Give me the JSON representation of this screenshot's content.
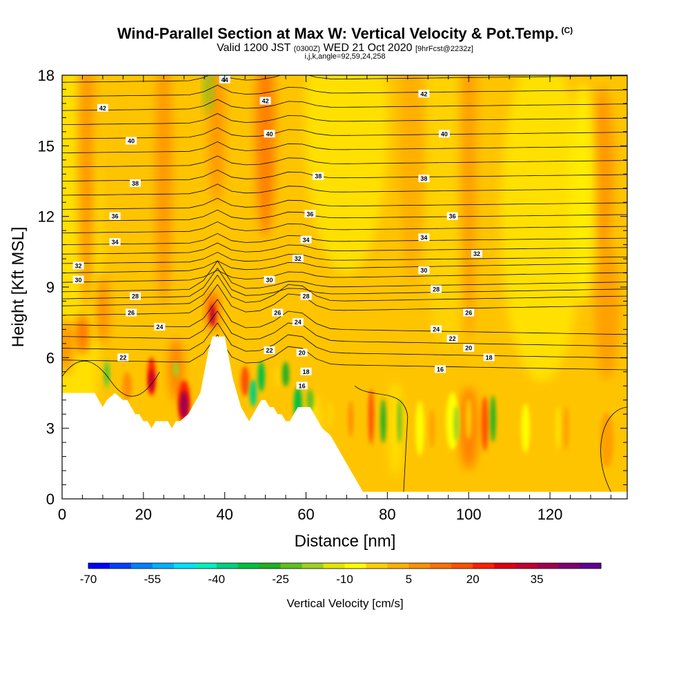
{
  "title": {
    "main": "Wind-Parallel Section at Max W: Vertical Velocity & Pot.Temp.",
    "copyright": "(C)",
    "valid_prefix": "Valid 1200 JST",
    "valid_z": "(0300Z)",
    "valid_date": "WED 21 Oct 2020",
    "fcst": "[9hrFcst@2232z]",
    "ijk": "i,j,k,angle=92,59,24,258"
  },
  "chart_data": {
    "type": "heatmap",
    "xlabel": "Distance [nm]",
    "ylabel": "Height [Kft MSL]",
    "xlim": [
      0,
      139
    ],
    "ylim": [
      0,
      18
    ],
    "x_ticks": [
      0,
      20,
      40,
      60,
      80,
      100,
      120
    ],
    "y_ticks": [
      0,
      3,
      6,
      9,
      12,
      15,
      18
    ],
    "colorbar": {
      "title": "Vertical Velocity [cm/s]",
      "tick_labels": [
        "-70",
        "-55",
        "-40",
        "-25",
        "-10",
        "5",
        "20",
        "35"
      ],
      "colors": [
        "#0000ff",
        "#0040ff",
        "#0080ff",
        "#00b0ff",
        "#00e0ff",
        "#00f0c0",
        "#00d080",
        "#00c040",
        "#20b020",
        "#60c020",
        "#a0d020",
        "#e0e800",
        "#ffff00",
        "#ffd000",
        "#ffb000",
        "#ff9000",
        "#ff7000",
        "#ff5000",
        "#ff2000",
        "#e00010",
        "#c00030",
        "#a00050",
        "#800070",
        "#600090"
      ]
    },
    "terrain_kft": [
      [
        0,
        4.5
      ],
      [
        5,
        4.5
      ],
      [
        8,
        4.5
      ],
      [
        9,
        4.2
      ],
      [
        10,
        3.9
      ],
      [
        11,
        4.2
      ],
      [
        13,
        4.5
      ],
      [
        15,
        4.2
      ],
      [
        16,
        4.2
      ],
      [
        17,
        3.9
      ],
      [
        18,
        3.6
      ],
      [
        19,
        3.6
      ],
      [
        20,
        3.3
      ],
      [
        21,
        3.3
      ],
      [
        22,
        3.0
      ],
      [
        23,
        3.3
      ],
      [
        24,
        3.3
      ],
      [
        26,
        3.3
      ],
      [
        27,
        3.0
      ],
      [
        28,
        3.3
      ],
      [
        29,
        3.3
      ],
      [
        31,
        3.6
      ],
      [
        32,
        3.9
      ],
      [
        33,
        4.2
      ],
      [
        34,
        4.5
      ],
      [
        35,
        5.4
      ],
      [
        36,
        6.3
      ],
      [
        37,
        6.9
      ],
      [
        40,
        6.9
      ],
      [
        41,
        6.0
      ],
      [
        42,
        5.1
      ],
      [
        43,
        4.5
      ],
      [
        44,
        3.9
      ],
      [
        45,
        3.6
      ],
      [
        46,
        3.3
      ],
      [
        47,
        3.6
      ],
      [
        48,
        3.9
      ],
      [
        49,
        4.2
      ],
      [
        50,
        4.2
      ],
      [
        51,
        3.9
      ],
      [
        52,
        3.9
      ],
      [
        53,
        3.6
      ],
      [
        54,
        3.6
      ],
      [
        55,
        3.3
      ],
      [
        56,
        3.3
      ],
      [
        57,
        3.6
      ],
      [
        58,
        3.9
      ],
      [
        61,
        3.9
      ],
      [
        62,
        3.6
      ],
      [
        63,
        3.3
      ],
      [
        64,
        3.0
      ],
      [
        66,
        2.7
      ],
      [
        67,
        2.4
      ],
      [
        68,
        2.1
      ],
      [
        69,
        1.8
      ],
      [
        70,
        1.5
      ],
      [
        71,
        1.2
      ],
      [
        72,
        0.9
      ],
      [
        73,
        0.6
      ],
      [
        74,
        0.3
      ],
      [
        139,
        0.3
      ]
    ],
    "theta_contours": [
      {
        "label": "16",
        "x": 93,
        "y": 5.5
      },
      {
        "label": "16",
        "x": 59,
        "y": 4.8
      },
      {
        "label": "18",
        "x": 60,
        "y": 5.4
      },
      {
        "label": "18",
        "x": 105,
        "y": 6.0
      },
      {
        "label": "20",
        "x": 59,
        "y": 6.2
      },
      {
        "label": "20",
        "x": 100,
        "y": 6.4
      },
      {
        "label": "22",
        "x": 15,
        "y": 6.0
      },
      {
        "label": "22",
        "x": 51,
        "y": 6.3
      },
      {
        "label": "22",
        "x": 96,
        "y": 6.8
      },
      {
        "label": "24",
        "x": 24,
        "y": 7.3
      },
      {
        "label": "24",
        "x": 58,
        "y": 7.5
      },
      {
        "label": "24",
        "x": 92,
        "y": 7.2
      },
      {
        "label": "26",
        "x": 17,
        "y": 7.9
      },
      {
        "label": "26",
        "x": 53,
        "y": 7.9
      },
      {
        "label": "26",
        "x": 100,
        "y": 7.9
      },
      {
        "label": "28",
        "x": 18,
        "y": 8.6
      },
      {
        "label": "28",
        "x": 60,
        "y": 8.6
      },
      {
        "label": "28",
        "x": 92,
        "y": 8.9
      },
      {
        "label": "30",
        "x": 4,
        "y": 9.3
      },
      {
        "label": "30",
        "x": 51,
        "y": 9.3
      },
      {
        "label": "30",
        "x": 89,
        "y": 9.7
      },
      {
        "label": "32",
        "x": 4,
        "y": 9.9
      },
      {
        "label": "32",
        "x": 58,
        "y": 10.2
      },
      {
        "label": "32",
        "x": 102,
        "y": 10.4
      },
      {
        "label": "34",
        "x": 13,
        "y": 10.9
      },
      {
        "label": "34",
        "x": 60,
        "y": 11.0
      },
      {
        "label": "34",
        "x": 89,
        "y": 11.1
      },
      {
        "label": "36",
        "x": 13,
        "y": 12.0
      },
      {
        "label": "36",
        "x": 61,
        "y": 12.1
      },
      {
        "label": "36",
        "x": 96,
        "y": 12.0
      },
      {
        "label": "38",
        "x": 18,
        "y": 13.4
      },
      {
        "label": "38",
        "x": 63,
        "y": 13.7
      },
      {
        "label": "38",
        "x": 89,
        "y": 13.6
      },
      {
        "label": "40",
        "x": 17,
        "y": 15.2
      },
      {
        "label": "40",
        "x": 51,
        "y": 15.5
      },
      {
        "label": "40",
        "x": 94,
        "y": 15.5
      },
      {
        "label": "42",
        "x": 10,
        "y": 16.6
      },
      {
        "label": "42",
        "x": 50,
        "y": 16.9
      },
      {
        "label": "42",
        "x": 89,
        "y": 17.2
      },
      {
        "label": "44",
        "x": 40,
        "y": 17.8
      }
    ]
  }
}
